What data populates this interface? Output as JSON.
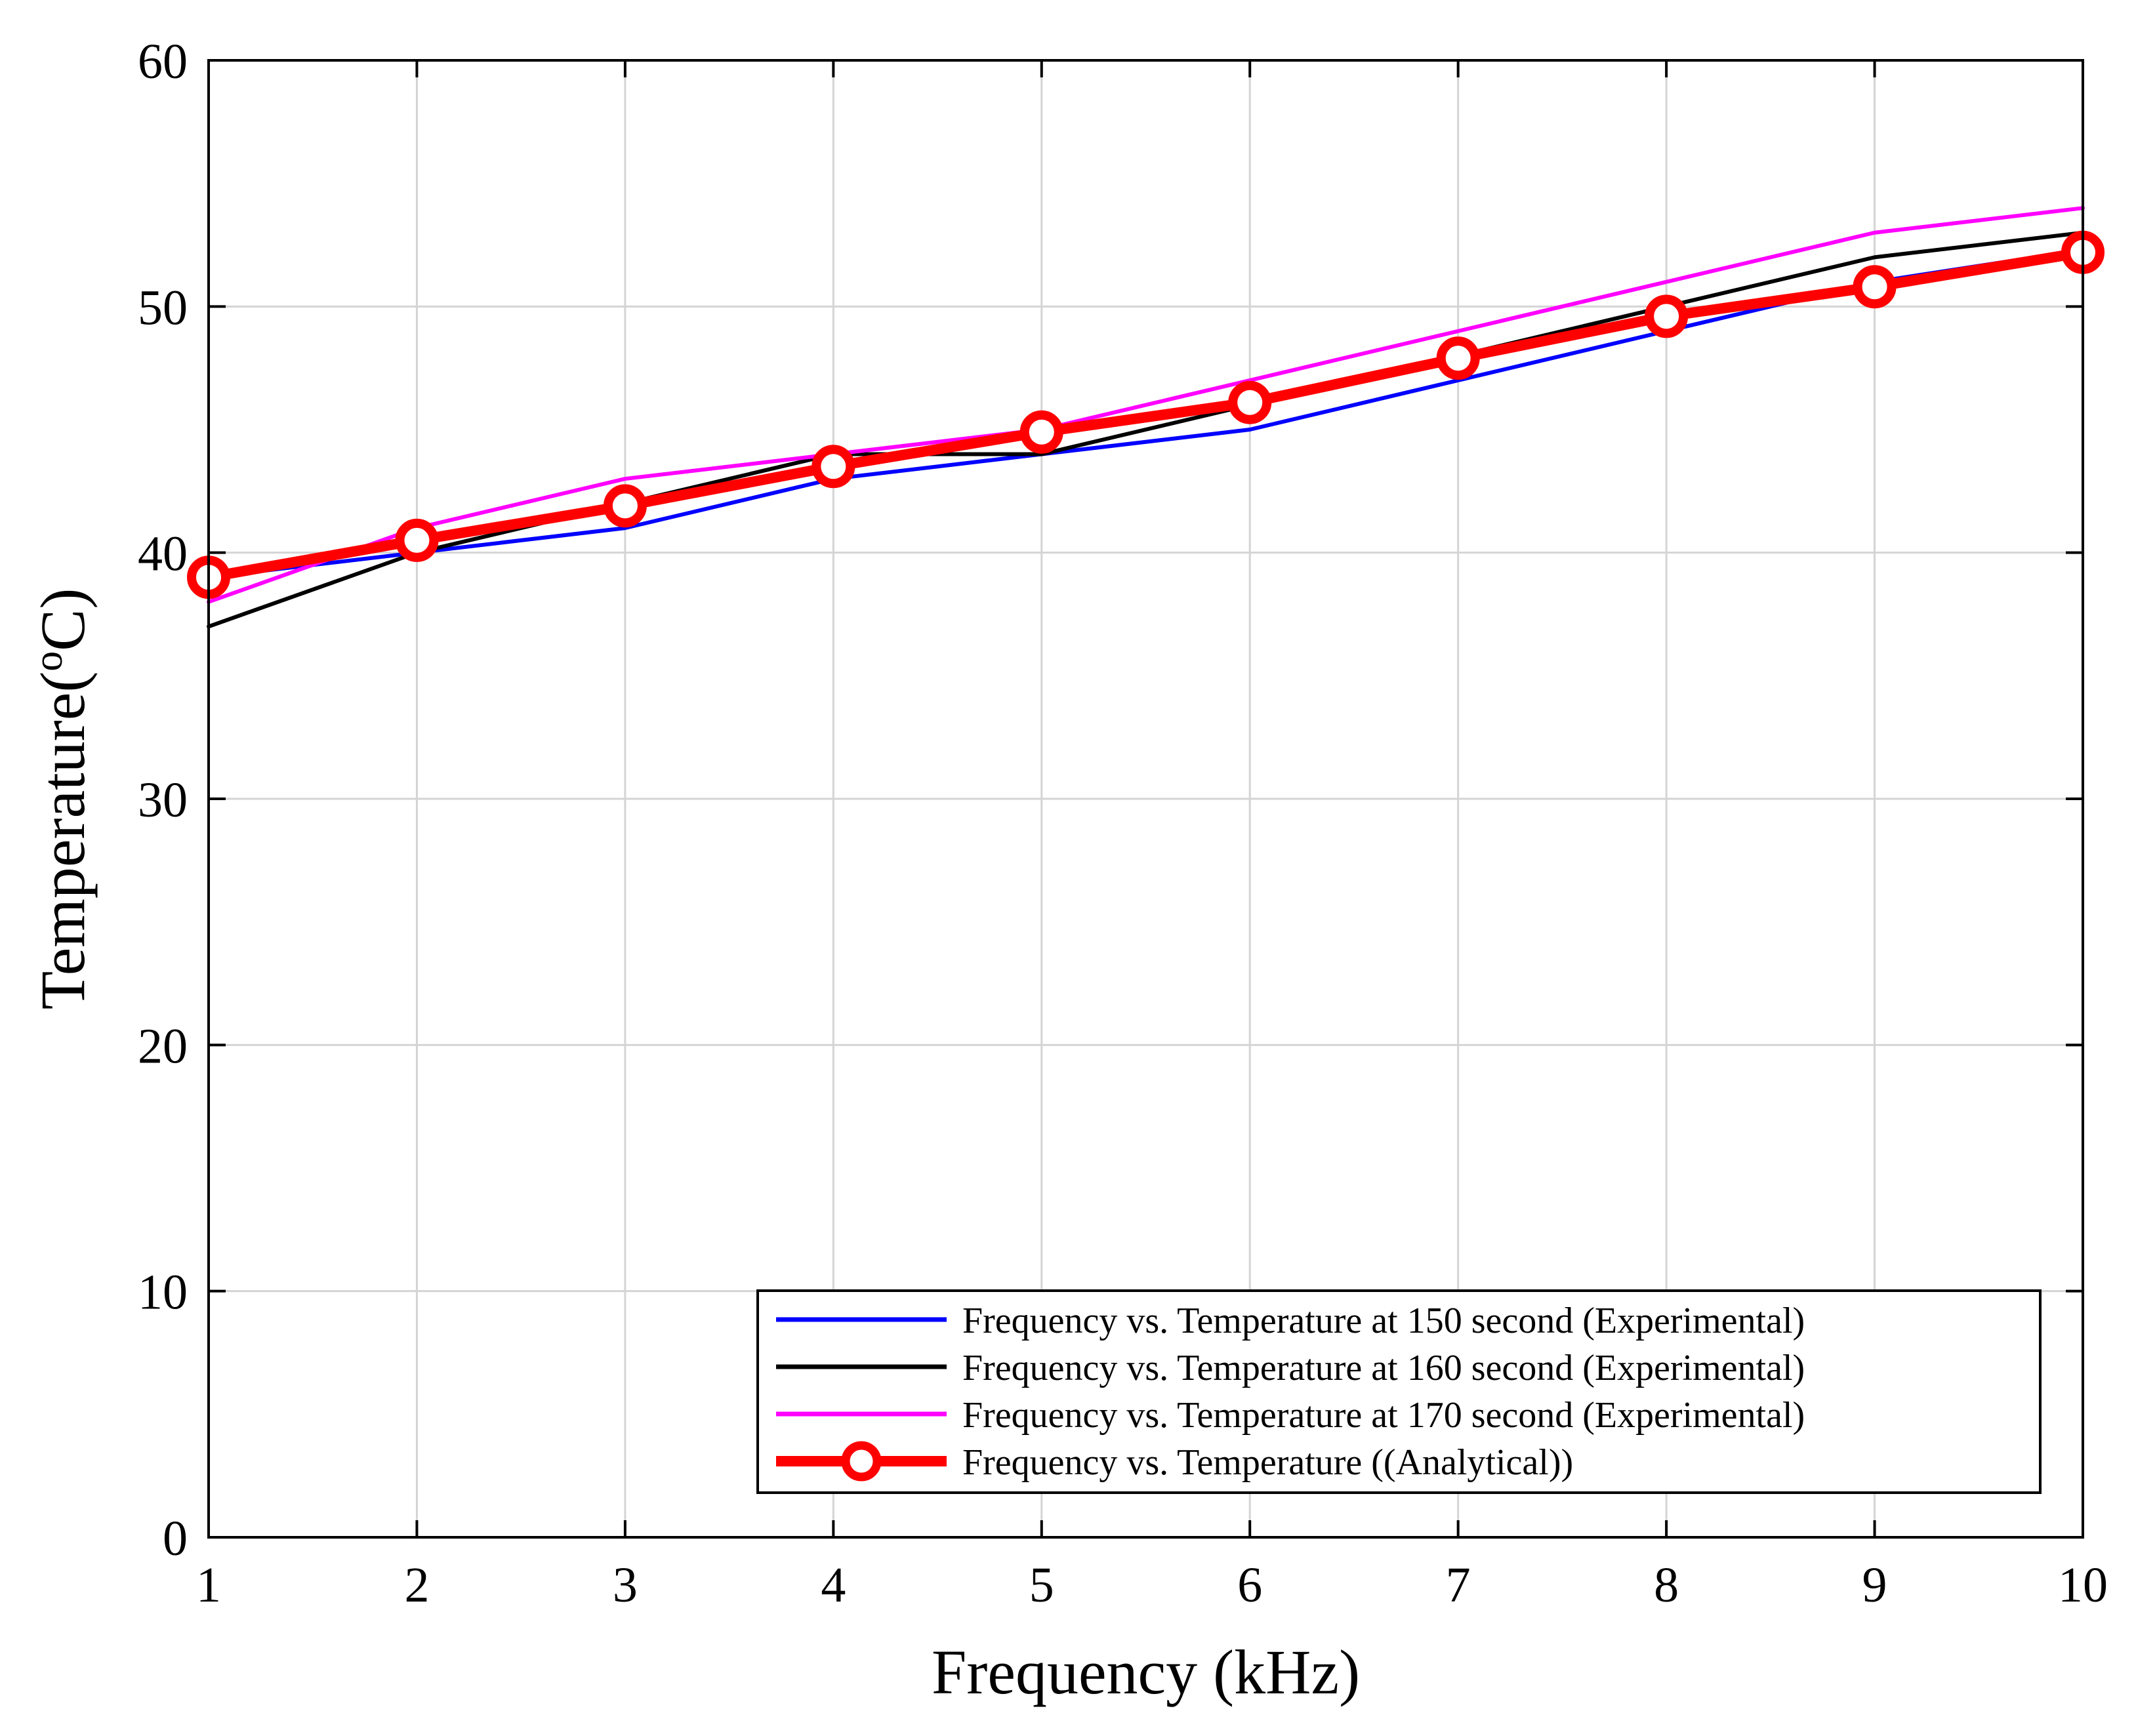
{
  "chart_data": {
    "type": "line",
    "title": "",
    "xlabel": "Frequency (kHz)",
    "ylabel": {
      "main": "Temperature(",
      "superscript": "o",
      "unit": "C)"
    },
    "xlim": [
      1,
      10
    ],
    "ylim": [
      0,
      60
    ],
    "xticks": [
      1,
      2,
      3,
      4,
      5,
      6,
      7,
      8,
      9,
      10
    ],
    "yticks": [
      0,
      10,
      20,
      30,
      40,
      50,
      60
    ],
    "grid": true,
    "legend_position": "bottom-right",
    "x": [
      1,
      2,
      3,
      4,
      5,
      6,
      7,
      8,
      9,
      10
    ],
    "series": [
      {
        "name": "Frequency vs. Temperature at 150 second (Experimental)",
        "color": "#0000ff",
        "marker": "none",
        "emphasis": "thin",
        "values": [
          39,
          40,
          41,
          43,
          44,
          45,
          47,
          49,
          51,
          52.3
        ]
      },
      {
        "name": "Frequency vs. Temperature at 160 second (Experimental)",
        "color": "#000000",
        "marker": "none",
        "emphasis": "thin",
        "values": [
          37,
          40,
          42,
          44,
          44,
          46,
          48,
          50,
          52,
          53
        ]
      },
      {
        "name": "Frequency vs. Temperature at 170 second (Experimental)",
        "color": "#ff00ff",
        "marker": "none",
        "emphasis": "thin",
        "values": [
          38,
          41,
          43,
          44,
          45,
          47,
          49,
          51,
          53,
          54
        ]
      },
      {
        "name": "Frequency vs. Temperature ((Analytical))",
        "color": "#ff0000",
        "marker": "circle",
        "emphasis": "thick",
        "values": [
          39,
          40.5,
          41.9,
          43.5,
          44.9,
          46.1,
          47.9,
          49.6,
          50.8,
          52.2
        ]
      }
    ]
  }
}
